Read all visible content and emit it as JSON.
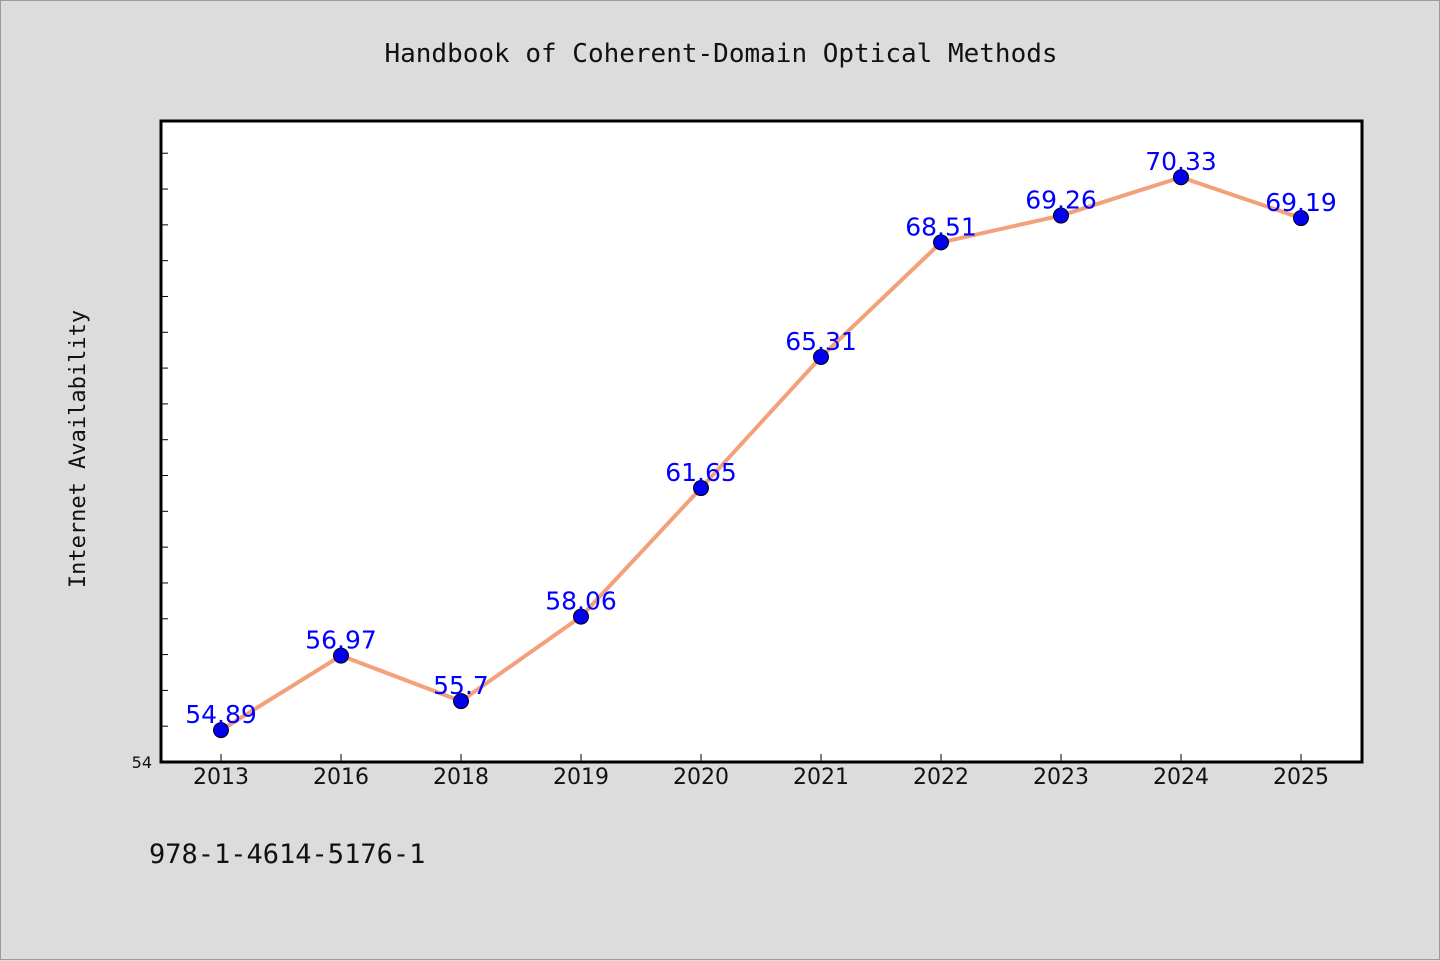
{
  "chart_data": {
    "type": "line",
    "title": "Handbook of Coherent-Domain Optical Methods",
    "xlabel": "",
    "ylabel": "Internet Availability",
    "categories": [
      "2013",
      "2016",
      "2018",
      "2019",
      "2020",
      "2021",
      "2022",
      "2023",
      "2024",
      "2025"
    ],
    "series": [
      {
        "values": [
          54.89,
          56.97,
          55.7,
          58.06,
          61.65,
          65.31,
          68.51,
          69.26,
          70.33,
          69.19
        ],
        "line_color": "#f4a07a",
        "marker_color": "#0000ee"
      }
    ],
    "data_labels": [
      "54.89",
      "56.97",
      "55.7",
      "58.06",
      "61.65",
      "65.31",
      "68.51",
      "69.26",
      "70.33",
      "69.19"
    ],
    "ylim": [
      54,
      71.9
    ],
    "y_tick_labels": [
      "54"
    ],
    "grid": false,
    "legend": "none"
  },
  "footer": {
    "isbn": "978-1-4614-5176-1"
  },
  "colors": {
    "background": "#dcdcdc",
    "plot_background": "#ffffff",
    "data_label": "#0000ff"
  }
}
